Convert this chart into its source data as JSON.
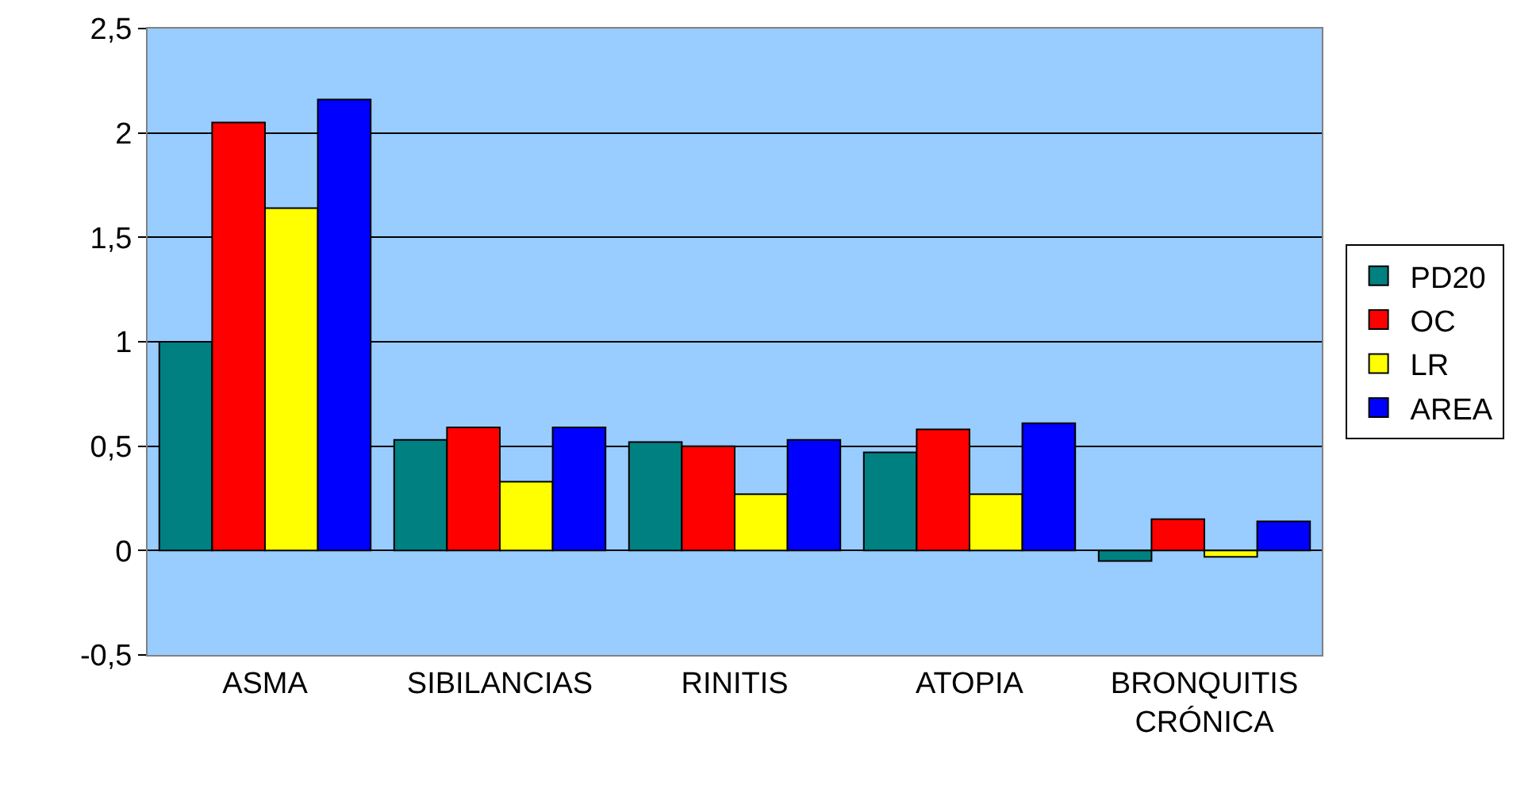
{
  "chart_data": {
    "type": "bar",
    "categories": [
      "ASMA",
      "SIBILANCIAS",
      "RINITIS",
      "ATOPIA",
      "BRONQUITIS CRÓNICA"
    ],
    "series": [
      {
        "name": "PD20",
        "color": "#008080",
        "values": [
          1.0,
          0.53,
          0.52,
          0.47,
          -0.05
        ]
      },
      {
        "name": "OC",
        "color": "#ff0000",
        "values": [
          2.05,
          0.59,
          0.5,
          0.58,
          0.15
        ]
      },
      {
        "name": "LR",
        "color": "#ffff00",
        "values": [
          1.64,
          0.33,
          0.27,
          0.27,
          -0.03
        ]
      },
      {
        "name": "AREA",
        "color": "#0000ff",
        "values": [
          2.16,
          0.59,
          0.53,
          0.61,
          0.14
        ]
      }
    ],
    "ylim": [
      -0.5,
      2.5
    ],
    "yticks": [
      {
        "value": -0.5,
        "label": "-0,5"
      },
      {
        "value": 0,
        "label": "0"
      },
      {
        "value": 0.5,
        "label": "0,5"
      },
      {
        "value": 1,
        "label": "1"
      },
      {
        "value": 1.5,
        "label": "1,5"
      },
      {
        "value": 2,
        "label": "2"
      },
      {
        "value": 2.5,
        "label": "2,5"
      }
    ],
    "grid": "y",
    "legend": "right"
  }
}
